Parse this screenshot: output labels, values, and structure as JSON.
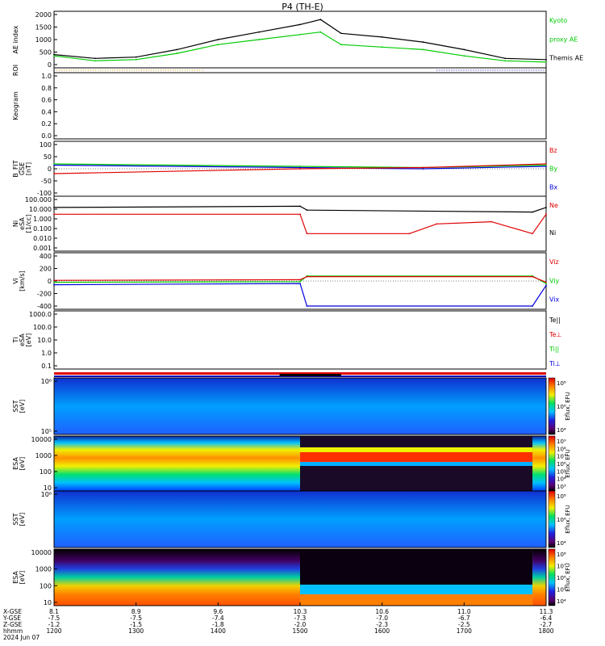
{
  "title": "P4 (TH-E)",
  "panels": {
    "ae": {
      "ylabel": "AE index",
      "yticks": [
        "2000",
        "1500",
        "1000",
        "500",
        "0"
      ],
      "legend": [
        {
          "label": "Kyoto",
          "color": "#00cc00"
        },
        {
          "label": "proxy AE",
          "color": "#00cc00"
        },
        {
          "label": "Themis AE",
          "color": "#000000"
        }
      ]
    },
    "roi": {
      "ylabel": "ROI"
    },
    "keo": {
      "ylabel": "Keogram",
      "yticks": [
        "1.0",
        "0.8",
        "0.6",
        "0.4",
        "0.2",
        "0.0"
      ]
    },
    "bfit": {
      "ylabel": [
        "B_FIT",
        "GSE",
        "[nT]"
      ],
      "yticks": [
        "100",
        "50",
        "0",
        "-50",
        "-100"
      ],
      "legend": [
        {
          "label": "Bz",
          "color": "#e00000"
        },
        {
          "label": "By",
          "color": "#00cc00"
        },
        {
          "label": "Bx",
          "color": "#0000dd"
        }
      ]
    },
    "ni": {
      "ylabel": [
        "Ni",
        "eSA",
        "[1/cc]"
      ],
      "yticks": [
        "100.000",
        "10.000",
        "1.000",
        "0.100",
        "0.010",
        "0.001"
      ],
      "legend": [
        {
          "label": "Ne",
          "color": "#e00000"
        },
        {
          "label": "Ni",
          "color": "#000000"
        }
      ]
    },
    "vi": {
      "ylabel": [
        "Vi",
        "[km/s]"
      ],
      "yticks": [
        "400",
        "200",
        "0",
        "-200",
        "-400"
      ],
      "legend": [
        {
          "label": "Viz",
          "color": "#e00000"
        },
        {
          "label": "Viy",
          "color": "#00cc00"
        },
        {
          "label": "Vix",
          "color": "#0000dd"
        }
      ]
    },
    "ti": {
      "ylabel": [
        "Ti",
        "eSA",
        "[eV]"
      ],
      "yticks": [
        "1000.0",
        "100.0",
        "10.0",
        "1.0",
        "0.1"
      ],
      "legend": [
        {
          "label": "Te||",
          "color": "#000000"
        },
        {
          "label": "Te⊥",
          "color": "#e00000"
        },
        {
          "label": "Ti||",
          "color": "#00cc00"
        },
        {
          "label": "Ti⊥",
          "color": "#0000dd"
        }
      ]
    },
    "sst_e": {
      "ylabel": [
        "SST",
        "[eV]"
      ],
      "yticks": [
        "10⁶",
        "10⁵"
      ]
    },
    "esa_e": {
      "ylabel": [
        "ESA",
        "[eV]"
      ],
      "yticks": [
        "10000",
        "1000",
        "100",
        "10"
      ]
    },
    "sst_i": {
      "ylabel": [
        "SST",
        "[eV]"
      ],
      "yticks": [
        "10⁶"
      ]
    },
    "esa_i": {
      "ylabel": [
        "ESA",
        "[eV]"
      ],
      "yticks": [
        "10000",
        "1000",
        "100",
        "10"
      ]
    }
  },
  "colorbars": [
    {
      "label": "Eflux, EFU",
      "ticks": [
        "10⁸",
        "10⁶",
        "10⁴"
      ]
    },
    {
      "label": "Eflux, EFU",
      "ticks": [
        "10⁹",
        "10⁸",
        "10⁷",
        "10⁶",
        "10⁵",
        "10⁴",
        "10³"
      ]
    },
    {
      "label": "Eflux, EFU",
      "ticks": [
        "10⁸",
        "10⁶",
        "10⁴"
      ]
    },
    {
      "label": "Eflux, EFU",
      "ticks": [
        "10⁸",
        "10⁷",
        "10⁶",
        "10⁵",
        "10⁴"
      ]
    }
  ],
  "xaxis": {
    "row_labels": [
      "X-GSE",
      "Y-GSE",
      "Z-GSE",
      "hhmm",
      "2024 Jun 07"
    ],
    "columns": [
      {
        "x": "8.1",
        "y": "-7.5",
        "z": "-1.2",
        "t": "1200"
      },
      {
        "x": "8.9",
        "y": "-7.5",
        "z": "-1.5",
        "t": "1300"
      },
      {
        "x": "9.6",
        "y": "-7.4",
        "z": "-1.8",
        "t": "1400"
      },
      {
        "x": "10.3",
        "y": "-7.3",
        "z": "-2.0",
        "t": "1500"
      },
      {
        "x": "10.6",
        "y": "-7.0",
        "z": "-2.3",
        "t": "1600"
      },
      {
        "x": "11.0",
        "y": "-6.7",
        "z": "-2.5",
        "t": "1700"
      },
      {
        "x": "11.3",
        "y": "-6.4",
        "z": "-2.7",
        "t": "1800"
      }
    ]
  },
  "chart_data": {
    "type": "line",
    "title": "P4 (TH-E)",
    "date": "2024 Jun 07",
    "time_range": [
      "12:00",
      "18:00"
    ],
    "series": [
      {
        "name": "Themis AE",
        "panel": "AE index",
        "x": [
          "12:00",
          "12:30",
          "13:00",
          "13:30",
          "14:00",
          "14:30",
          "15:00",
          "15:15",
          "15:30",
          "16:00",
          "16:30",
          "17:00",
          "17:30",
          "18:00"
        ],
        "values": [
          400,
          250,
          300,
          600,
          1000,
          1300,
          1600,
          1800,
          1250,
          1100,
          900,
          600,
          250,
          200
        ]
      },
      {
        "name": "Kyoto proxy AE",
        "panel": "AE index",
        "x": [
          "12:00",
          "12:30",
          "13:00",
          "13:30",
          "14:00",
          "14:30",
          "15:00",
          "15:15",
          "15:30",
          "16:00",
          "16:30",
          "17:00",
          "17:30",
          "18:00"
        ],
        "values": [
          350,
          150,
          200,
          450,
          800,
          1000,
          1200,
          1300,
          800,
          700,
          600,
          350,
          150,
          100
        ]
      },
      {
        "name": "Ne",
        "panel": "Ni [1/cc]",
        "x": [
          "12:00",
          "15:00",
          "15:05",
          "16:20",
          "16:40",
          "17:20",
          "17:50",
          "18:00"
        ],
        "values": [
          3,
          3,
          0.03,
          0.03,
          0.3,
          0.5,
          0.03,
          3
        ]
      },
      {
        "name": "Ni",
        "panel": "Ni [1/cc]",
        "x": [
          "12:00",
          "15:00",
          "15:05",
          "17:50",
          "18:00"
        ],
        "values": [
          15,
          20,
          8,
          5,
          15
        ]
      },
      {
        "name": "Vix",
        "panel": "Vi [km/s]",
        "x": [
          "12:00",
          "15:00",
          "15:05",
          "17:50",
          "18:00"
        ],
        "values": [
          -60,
          -40,
          -400,
          -400,
          -70
        ]
      },
      {
        "name": "Viy",
        "panel": "Vi [km/s]",
        "x": [
          "12:00",
          "15:00",
          "15:05",
          "17:50",
          "18:00"
        ],
        "values": [
          -20,
          -10,
          80,
          80,
          -40
        ]
      },
      {
        "name": "Viz",
        "panel": "Vi [km/s]",
        "x": [
          "12:00",
          "15:00",
          "15:05",
          "17:50",
          "18:00"
        ],
        "values": [
          10,
          20,
          70,
          70,
          -20
        ]
      },
      {
        "name": "Bx",
        "panel": "B_FIT GSE [nT]",
        "x": [
          "12:00",
          "15:00",
          "16:30",
          "18:00"
        ],
        "values": [
          15,
          5,
          0,
          10
        ]
      },
      {
        "name": "By",
        "panel": "B_FIT GSE [nT]",
        "x": [
          "12:00",
          "15:00",
          "16:30",
          "18:00"
        ],
        "values": [
          20,
          10,
          5,
          15
        ]
      },
      {
        "name": "Bz",
        "panel": "B_FIT GSE [nT]",
        "x": [
          "12:00",
          "15:00",
          "16:30",
          "18:00"
        ],
        "values": [
          -20,
          0,
          5,
          20
        ]
      }
    ]
  }
}
